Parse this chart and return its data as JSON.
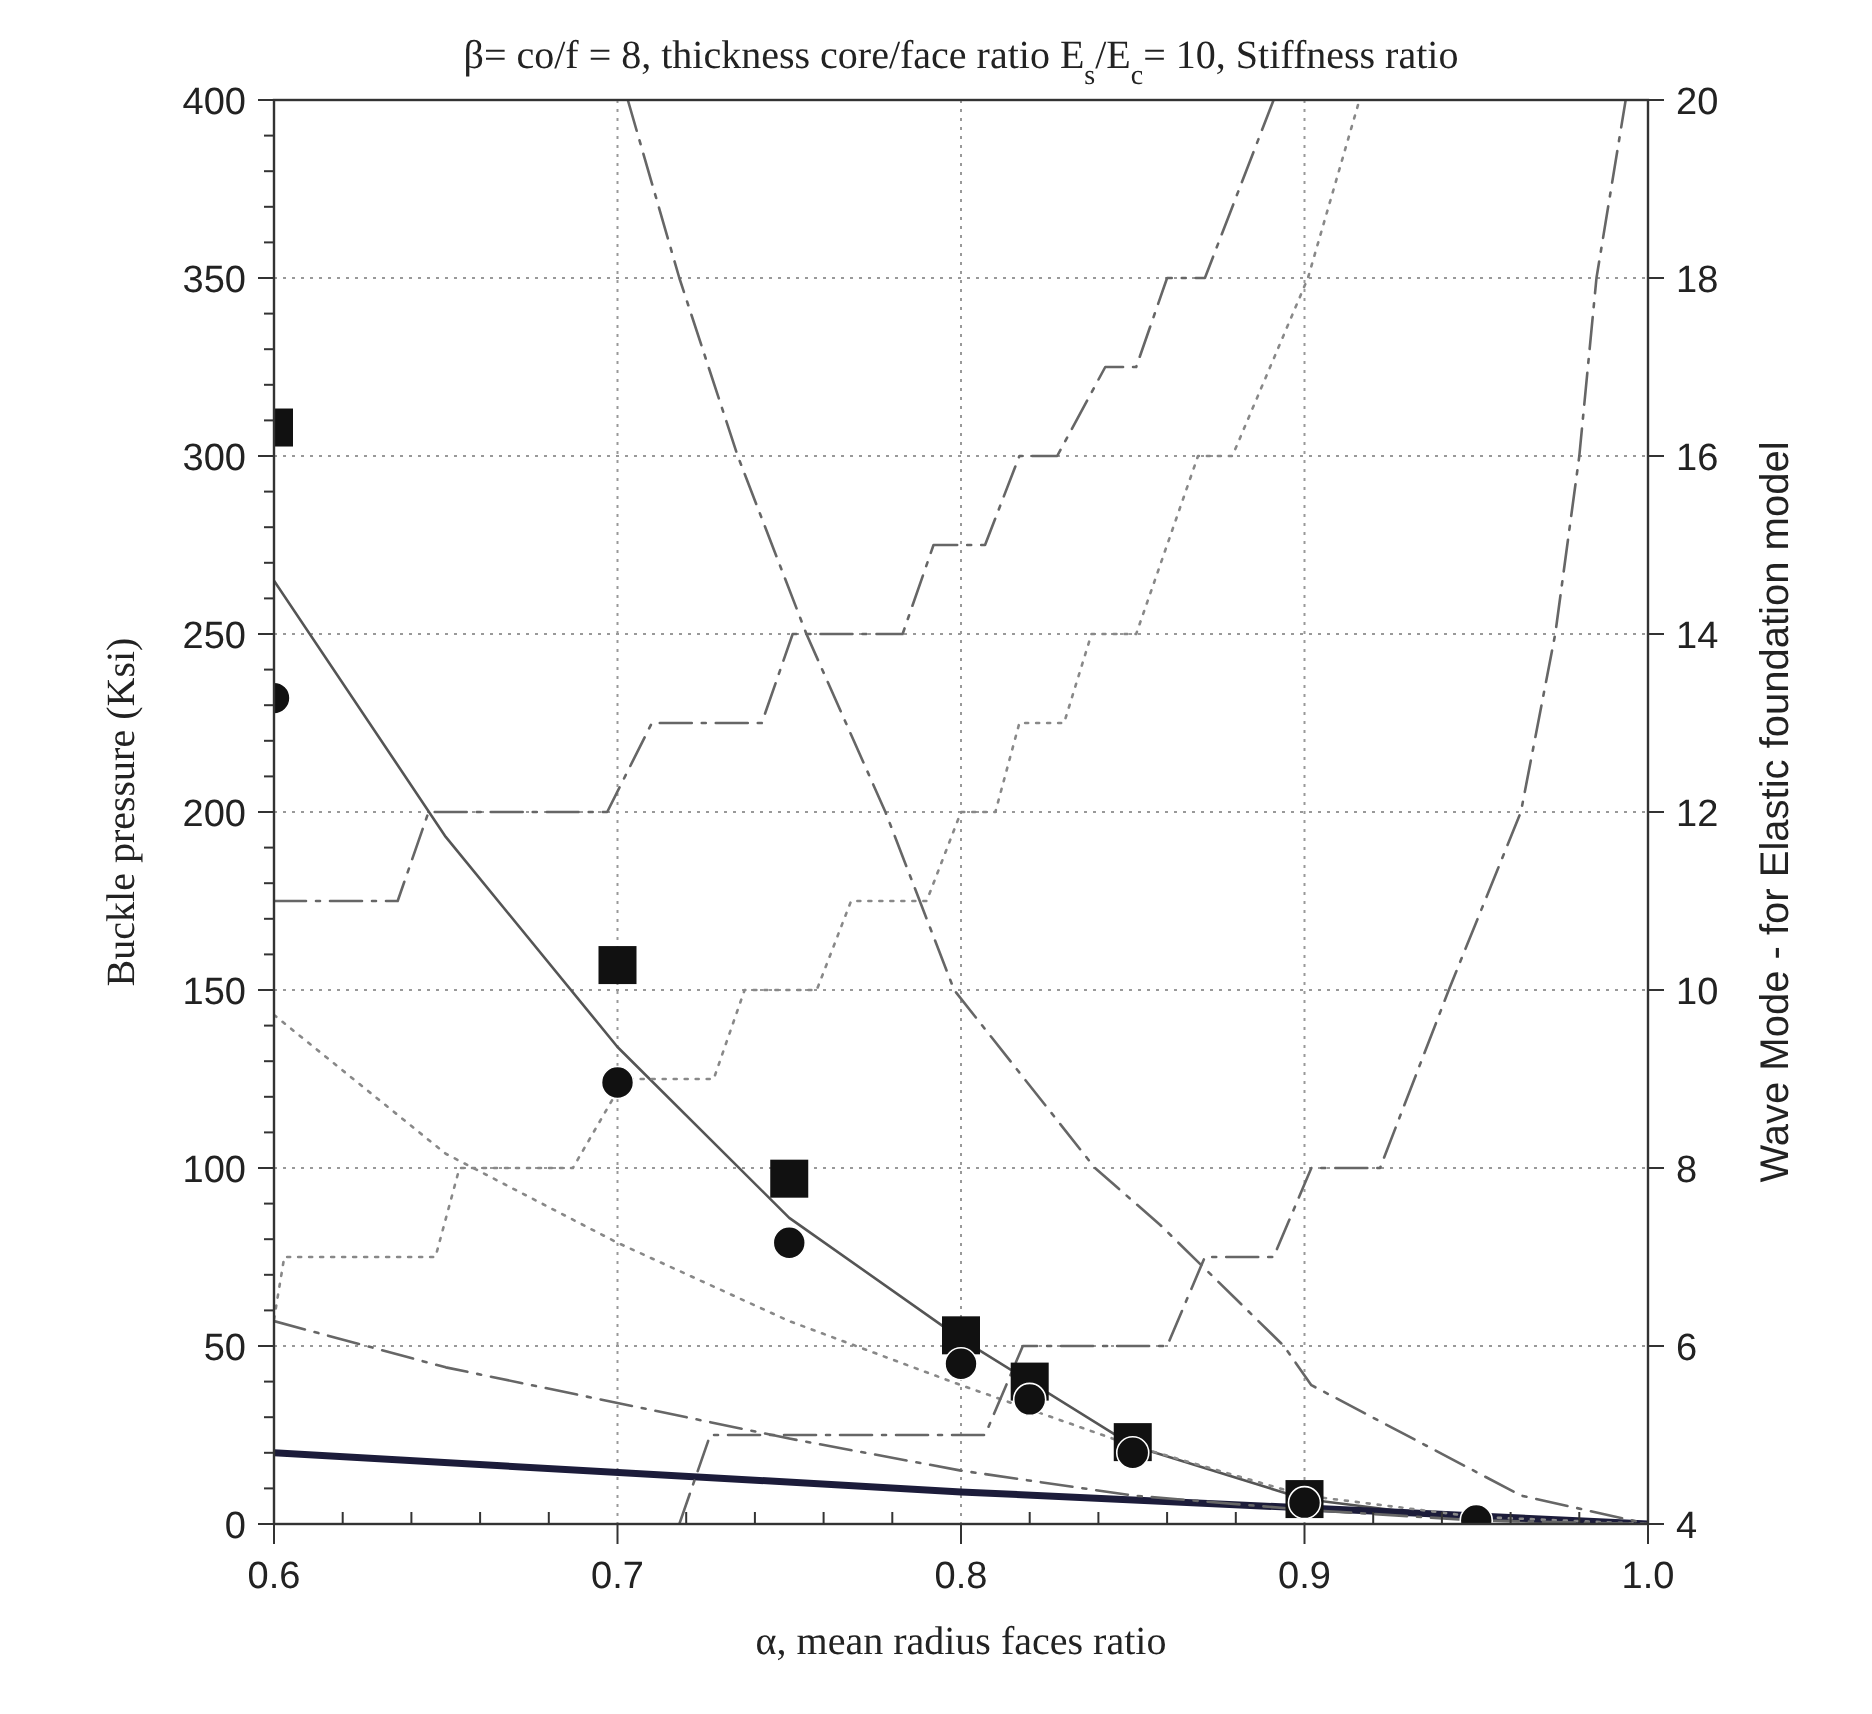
{
  "chart_data": {
    "type": "line",
    "title": "β= co/f = 8, thickness core/face ratio  E$_{s}$/E$_{c}$= 10, Stiffness ratio",
    "xlabel": "α, mean radius faces ratio",
    "ylabel": "Buckle pressure  (Ksi)",
    "y2label": "Wave Mode - for Elastic foundation model",
    "xlim": [
      0.6,
      1.0
    ],
    "xticks": [
      {
        "value": 0.6,
        "label": "0.6"
      },
      {
        "value": 0.62,
        "label": null
      },
      {
        "value": 0.64,
        "label": null
      },
      {
        "value": 0.66,
        "label": null
      },
      {
        "value": 0.68,
        "label": null
      },
      {
        "value": 0.7,
        "label": "0.7"
      },
      {
        "value": 0.72,
        "label": null
      },
      {
        "value": 0.74,
        "label": null
      },
      {
        "value": 0.76,
        "label": null
      },
      {
        "value": 0.78,
        "label": null
      },
      {
        "value": 0.8,
        "label": "0.8"
      },
      {
        "value": 0.82,
        "label": null
      },
      {
        "value": 0.84,
        "label": null
      },
      {
        "value": 0.86,
        "label": null
      },
      {
        "value": 0.88,
        "label": null
      },
      {
        "value": 0.9,
        "label": "0.9"
      },
      {
        "value": 0.92,
        "label": null
      },
      {
        "value": 0.94,
        "label": null
      },
      {
        "value": 0.96,
        "label": null
      },
      {
        "value": 0.98,
        "label": null
      },
      {
        "value": 1.0,
        "label": "1.0"
      }
    ],
    "ylim": [
      0,
      400
    ],
    "yticks": [
      0,
      {
        "value": 10,
        "label": null
      },
      {
        "value": 20,
        "label": null
      },
      {
        "value": 30,
        "label": null
      },
      {
        "value": 40,
        "label": null
      },
      50,
      {
        "value": 60,
        "label": null
      },
      {
        "value": 70,
        "label": null
      },
      {
        "value": 80,
        "label": null
      },
      {
        "value": 90,
        "label": null
      },
      100,
      {
        "value": 110,
        "label": null
      },
      {
        "value": 120,
        "label": null
      },
      {
        "value": 130,
        "label": null
      },
      {
        "value": 140,
        "label": null
      },
      150,
      {
        "value": 160,
        "label": null
      },
      {
        "value": 170,
        "label": null
      },
      {
        "value": 180,
        "label": null
      },
      {
        "value": 190,
        "label": null
      },
      200,
      {
        "value": 210,
        "label": null
      },
      {
        "value": 220,
        "label": null
      },
      {
        "value": 230,
        "label": null
      },
      {
        "value": 240,
        "label": null
      },
      250,
      {
        "value": 260,
        "label": null
      },
      {
        "value": 270,
        "label": null
      },
      {
        "value": 280,
        "label": null
      },
      {
        "value": 290,
        "label": null
      },
      300,
      {
        "value": 310,
        "label": null
      },
      {
        "value": 320,
        "label": null
      },
      {
        "value": 330,
        "label": null
      },
      {
        "value": 340,
        "label": null
      },
      350,
      {
        "value": 360,
        "label": null
      },
      {
        "value": 370,
        "label": null
      },
      {
        "value": 380,
        "label": null
      },
      {
        "value": 390,
        "label": null
      },
      400
    ],
    "y2lim": [
      4,
      20
    ],
    "y2ticks": [
      4,
      6,
      8,
      10,
      12,
      14,
      16,
      18,
      20
    ],
    "grid": true,
    "series": [
      {
        "color": "#555555",
        "line_style": "solid",
        "x": [
          0.6,
          0.65,
          0.7,
          0.75,
          0.8,
          0.85,
          0.9,
          0.95,
          1.0
        ],
        "values": [
          265,
          193,
          134,
          86,
          52,
          22,
          7,
          1,
          0
        ]
      },
      {
        "color": "#1c1c3a",
        "line_style": "solid",
        "x": [
          0.6,
          0.8,
          1.0
        ],
        "values": [
          20,
          9,
          0
        ]
      },
      {
        "type": "line",
        "color": "#888888",
        "line_style": "dotted",
        "x": [
          0.6,
          0.65,
          0.7,
          0.75,
          0.8,
          0.85,
          0.9,
          0.95,
          1.0
        ],
        "values": [
          143,
          104,
          79,
          57,
          39,
          22,
          8,
          2,
          0
        ]
      },
      {
        "type": "line",
        "color": "#666666",
        "line_style": "dashed",
        "x": [
          0.6,
          0.65,
          0.7,
          0.75,
          0.8,
          0.85,
          0.9,
          0.95,
          1.0
        ],
        "values": [
          57,
          44,
          34,
          24,
          15,
          8,
          4,
          1,
          0
        ]
      },
      {
        "type": "line",
        "color": "#666666",
        "line_style": "dashed",
        "x": [
          0.703,
          0.718,
          0.735,
          0.755,
          0.778,
          0.798,
          0.839,
          0.858,
          0.894,
          0.902,
          0.963,
          1.0
        ],
        "values": [
          400,
          350,
          300,
          250,
          200,
          150,
          100,
          84,
          50,
          39,
          8,
          0
        ]
      },
      {
        "type": "line",
        "axis": "y2",
        "color": "#666666",
        "line_style": "dashed",
        "x": [
          0.6,
          0.636,
          0.645,
          0.697,
          0.71,
          0.742,
          0.751,
          0.783,
          0.792,
          0.807,
          0.817,
          0.828,
          0.842,
          0.851,
          0.86,
          0.871,
          0.891
        ],
        "values": [
          11,
          11,
          12,
          12,
          13,
          13,
          14,
          14,
          15,
          15,
          16,
          16,
          17,
          17,
          18,
          18,
          20
        ]
      },
      {
        "type": "line",
        "axis": "y2",
        "color": "#888888",
        "line_style": "dotted",
        "x": [
          0.6,
          0.603,
          0.647,
          0.654,
          0.687,
          0.702,
          0.728,
          0.737,
          0.758,
          0.768,
          0.79,
          0.8,
          0.81,
          0.817,
          0.83,
          0.838,
          0.851,
          0.869,
          0.879,
          0.901,
          0.916
        ],
        "values": [
          6.3,
          7,
          7,
          8,
          8,
          9,
          9,
          10,
          10,
          11,
          11,
          12,
          12,
          13,
          13,
          14,
          14,
          16,
          16,
          18,
          20
        ]
      },
      {
        "type": "line",
        "axis": "y2",
        "color": "#666666",
        "line_style": "dashed",
        "x": [
          0.718,
          0.727,
          0.807,
          0.818,
          0.86,
          0.871,
          0.891,
          0.902,
          0.922,
          0.942,
          0.963,
          0.973,
          0.98,
          0.985,
          0.9935
        ],
        "values": [
          4,
          5,
          5,
          6,
          6,
          7,
          7,
          8,
          8,
          10,
          12,
          14,
          16,
          18,
          20
        ]
      },
      {
        "type": "scatter",
        "marker": "square",
        "color": "#111111",
        "x": [
          0.6,
          0.7,
          0.75,
          0.8,
          0.82,
          0.85,
          0.9
        ],
        "values": [
          308,
          157,
          97,
          53,
          40,
          23,
          7
        ]
      },
      {
        "type": "scatter",
        "marker": "circle",
        "color": "#111111",
        "x": [
          0.6,
          0.7,
          0.75,
          0.8,
          0.82,
          0.85,
          0.9,
          0.95
        ],
        "values": [
          232,
          124,
          79,
          45,
          35,
          20,
          6,
          1
        ]
      }
    ]
  }
}
